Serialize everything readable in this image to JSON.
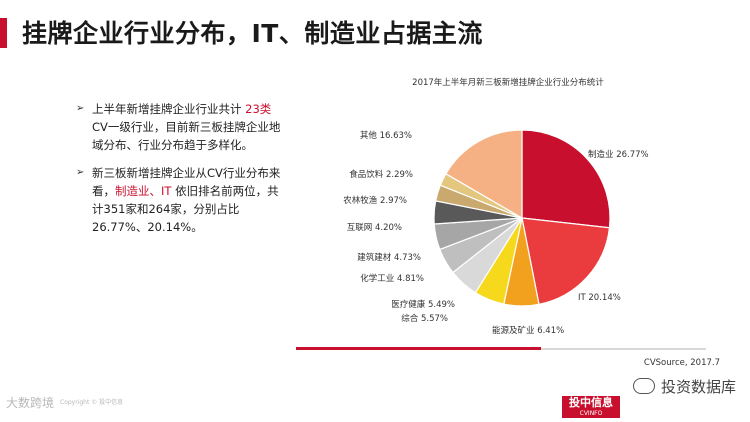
{
  "slide": {
    "title": "挂牌企业行业分布，IT、制造业占据主流"
  },
  "bullets": [
    {
      "pre": "上半年新增挂牌企业行业共计 ",
      "highlight": "23类",
      "post": " CV一级行业，目前新三板挂牌企业地域分布、行业分布趋于多样化。"
    },
    {
      "pre": "新三板新增挂牌企业从CV行业分布来看，",
      "highlight": "制造业、IT",
      "post": " 依旧排名前两位，共计351家和264家，分别占比26.77%、20.14%。"
    }
  ],
  "chart_data": {
    "type": "pie",
    "title": "2017年上半年月新三板新增挂牌企业行业分布统计",
    "slices": [
      {
        "label": "制造业",
        "value": 26.77,
        "text": "制造业 26.77%",
        "color": "#c8102e"
      },
      {
        "label": "IT",
        "value": 20.14,
        "text": "IT 20.14%",
        "color": "#ea3c3f"
      },
      {
        "label": "能源及矿业",
        "value": 6.41,
        "text": "能源及矿业 6.41%",
        "color": "#f2a11f"
      },
      {
        "label": "综合",
        "value": 5.57,
        "text": "综合 5.57%",
        "color": "#f6d81c"
      },
      {
        "label": "医疗健康",
        "value": 5.49,
        "text": "医疗健康 5.49%",
        "color": "#d9d9d9"
      },
      {
        "label": "化学工业",
        "value": 4.81,
        "text": "化学工业 4.81%",
        "color": "#bfbfbf"
      },
      {
        "label": "建筑建材",
        "value": 4.73,
        "text": "建筑建材 4.73%",
        "color": "#a6a6a6"
      },
      {
        "label": "互联网",
        "value": 4.2,
        "text": "互联网 4.20%",
        "color": "#595959"
      },
      {
        "label": "农林牧渔",
        "value": 2.97,
        "text": "农林牧渔 2.97%",
        "color": "#c9a96e"
      },
      {
        "label": "食品饮料",
        "value": 2.29,
        "text": "食品饮料 2.29%",
        "color": "#e3c77f"
      },
      {
        "label": "其他",
        "value": 16.63,
        "text": "其他 16.63%",
        "color": "#f5b183"
      }
    ]
  },
  "source": "CVSource, 2017.7",
  "watermarks": {
    "left": "大数跨境",
    "left_small": "Copyright © 投中信息",
    "right": "投资数据库",
    "logo_main": "投中信息",
    "logo_sub": "CVINFO"
  }
}
